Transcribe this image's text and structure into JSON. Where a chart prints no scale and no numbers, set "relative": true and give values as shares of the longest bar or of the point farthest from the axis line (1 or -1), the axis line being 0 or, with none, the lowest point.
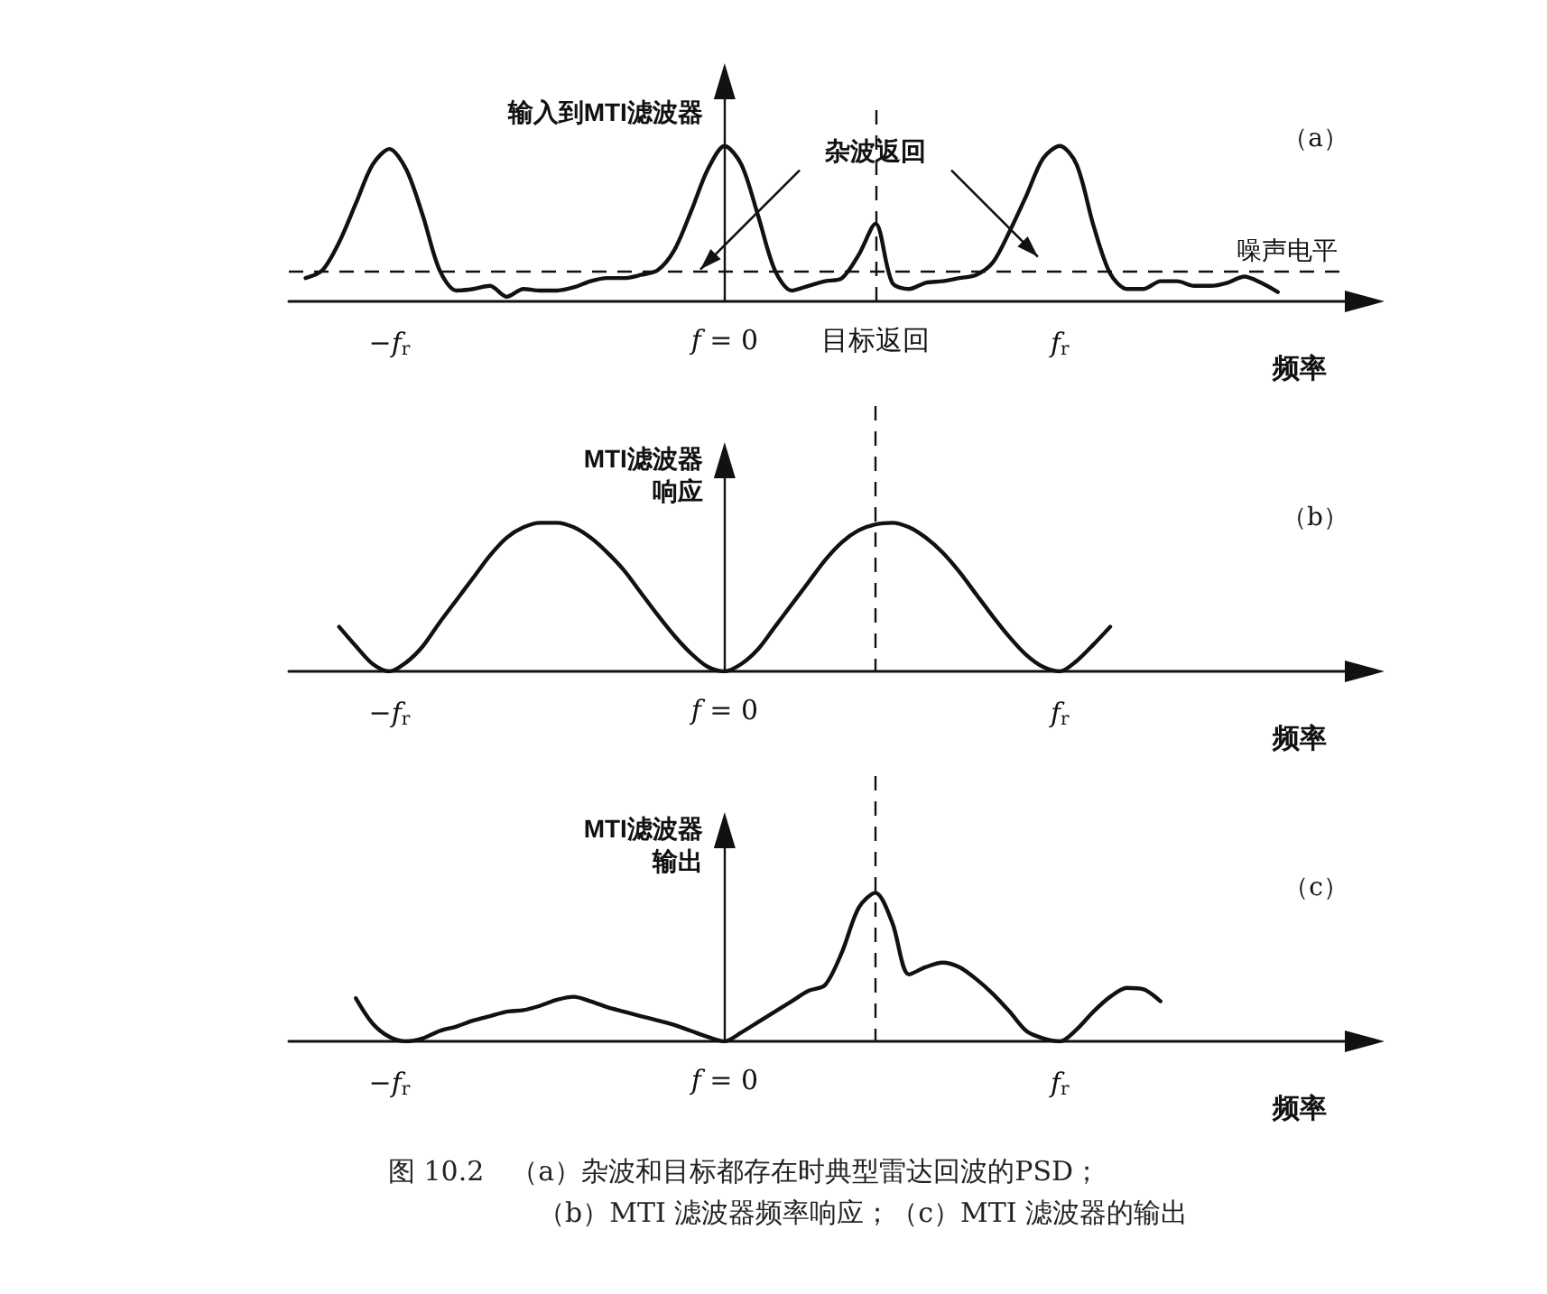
{
  "chart_data": [
    {
      "type": "line",
      "relative": true,
      "ylabel": "输入到MTI滤波器",
      "xlabel": "频率",
      "color": "#111111",
      "grid": false,
      "marker": "none",
      "line_style": "solid",
      "categories": [
        null,
        null,
        null,
        null,
        null,
        null,
        "−f$_{r}$",
        null,
        null,
        null,
        null,
        null,
        null,
        null,
        null,
        null,
        null,
        null,
        null,
        null,
        null,
        null,
        null,
        null,
        null,
        null,
        "f = 0",
        null,
        null,
        null,
        null,
        null,
        null,
        null,
        null,
        "目标返回",
        null,
        null,
        null,
        null,
        null,
        null,
        null,
        null,
        null,
        null,
        "f$_{r}$",
        null,
        null,
        null,
        null,
        null,
        null,
        null,
        null,
        null,
        null,
        null,
        null,
        null,
        null,
        null,
        null,
        null
      ],
      "values": [
        null,
        0.15,
        0.2,
        0.38,
        0.63,
        0.88,
        0.98,
        0.85,
        0.55,
        0.2,
        0.07,
        0.08,
        0.1,
        0.03,
        0.08,
        0.07,
        0.07,
        0.09,
        0.13,
        0.15,
        0.15,
        0.17,
        0.2,
        0.33,
        0.58,
        0.85,
        1,
        0.88,
        0.55,
        0.2,
        0.07,
        0.1,
        0.13,
        0.15,
        0.3,
        0.5,
        0.12,
        0.08,
        0.12,
        0.13,
        0.15,
        0.17,
        0.25,
        0.45,
        0.68,
        0.92,
        1,
        0.88,
        0.49,
        0.18,
        0.08,
        0.08,
        0.13,
        0.13,
        0.1,
        0.1,
        0.12,
        0.16,
        0.12,
        0.06,
        null,
        null,
        null,
        null
      ],
      "ref_lines": [
        {
          "axis": "y",
          "value": 0.19,
          "label": "噪声电平",
          "line_style": "dashed"
        },
        {
          "axis": "x",
          "value": "目标返回",
          "label": null,
          "line_style": "dashed"
        }
      ],
      "annotations": [
        "（a）",
        {
          "text": "杂波返回",
          "x": "目标返回",
          "y": 0.96
        }
      ]
    },
    {
      "type": "line",
      "relative": true,
      "ylabel": "MTI滤波器响应",
      "xlabel": "频率",
      "color": "#111111",
      "grid": false,
      "marker": "none",
      "line_style": "solid",
      "categories": [
        null,
        null,
        null,
        null,
        null,
        null,
        "−f$_{r}$",
        null,
        null,
        null,
        null,
        null,
        null,
        null,
        null,
        null,
        null,
        null,
        null,
        null,
        null,
        null,
        null,
        null,
        null,
        null,
        "f = 0",
        null,
        null,
        null,
        null,
        null,
        null,
        null,
        null,
        null,
        null,
        null,
        null,
        null,
        null,
        null,
        null,
        null,
        null,
        null,
        "f$_{r}$",
        null,
        null,
        null,
        null,
        null,
        null,
        null,
        null,
        null,
        null,
        null,
        null,
        null,
        null,
        null,
        null,
        null
      ],
      "values": [
        null,
        null,
        null,
        0.3,
        0.17,
        0.05,
        0,
        0.06,
        0.17,
        0.33,
        0.48,
        0.63,
        0.78,
        0.9,
        0.97,
        1,
        1,
        0.97,
        0.9,
        0.8,
        0.68,
        0.53,
        0.38,
        0.24,
        0.12,
        0.03,
        0,
        0.05,
        0.15,
        0.3,
        0.45,
        0.6,
        0.75,
        0.87,
        0.95,
        0.99,
        1,
        0.97,
        0.9,
        0.8,
        0.67,
        0.52,
        0.37,
        0.23,
        0.11,
        0.03,
        0,
        0.07,
        0.18,
        0.3,
        null,
        null,
        null,
        null,
        null,
        null,
        null,
        null,
        null,
        null,
        null,
        null,
        null,
        null
      ],
      "annotations": [
        "（b）"
      ]
    },
    {
      "type": "line",
      "relative": true,
      "ylabel": "MTI滤波器输出",
      "xlabel": "频率",
      "color": "#111111",
      "grid": false,
      "marker": "none",
      "line_style": "solid",
      "categories": [
        null,
        null,
        null,
        null,
        null,
        null,
        "−f$_{r}$",
        null,
        null,
        null,
        null,
        null,
        null,
        null,
        null,
        null,
        null,
        null,
        null,
        null,
        null,
        null,
        null,
        null,
        null,
        null,
        "f = 0",
        null,
        null,
        null,
        null,
        null,
        null,
        null,
        null,
        null,
        null,
        null,
        null,
        null,
        null,
        null,
        null,
        null,
        null,
        null,
        "f$_{r}$",
        null,
        null,
        null,
        null,
        null,
        null,
        null,
        null,
        null,
        null,
        null,
        null,
        null,
        null,
        null,
        null,
        null
      ],
      "values": [
        null,
        null,
        null,
        null,
        0.29,
        0.12,
        0.03,
        0,
        0.02,
        0.07,
        0.1,
        0.14,
        0.17,
        0.2,
        0.21,
        0.24,
        0.28,
        0.3,
        0.27,
        0.23,
        0.2,
        0.17,
        0.14,
        0.11,
        0.07,
        0.03,
        0,
        0.06,
        0.13,
        0.2,
        0.27,
        0.34,
        0.38,
        0.6,
        0.9,
        1,
        0.8,
        0.45,
        0.5,
        0.53,
        0.5,
        0.42,
        0.32,
        0.2,
        0.07,
        0.02,
        0,
        0.08,
        0.2,
        0.3,
        0.36,
        0.35,
        0.27,
        null,
        null,
        null,
        null,
        null,
        null,
        null,
        null,
        null,
        null,
        null
      ],
      "annotations": [
        "（c）",
        "图 10.2　（a）杂波和目标都存在时典型雷达回波的PSD；",
        "（b）MTI 滤波器频率响应；（c）MTI 滤波器的输出"
      ]
    }
  ]
}
